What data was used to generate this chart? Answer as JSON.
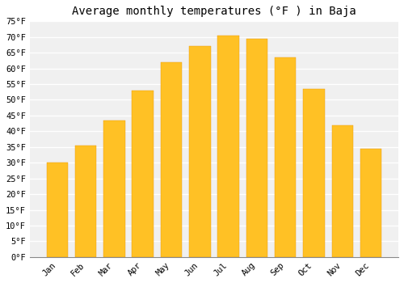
{
  "title": "Average monthly temperatures (°F ) in Baja",
  "months": [
    "Jan",
    "Feb",
    "Mar",
    "Apr",
    "May",
    "Jun",
    "Jul",
    "Aug",
    "Sep",
    "Oct",
    "Nov",
    "Dec"
  ],
  "values": [
    30,
    35.5,
    43.5,
    53,
    62,
    67,
    70.5,
    69.5,
    63.5,
    53.5,
    42,
    34.5
  ],
  "bar_color_top": "#FFC125",
  "bar_color_bottom": "#F5A623",
  "bar_edge_color": "#E8960A",
  "ylim": [
    0,
    75
  ],
  "yticks": [
    0,
    5,
    10,
    15,
    20,
    25,
    30,
    35,
    40,
    45,
    50,
    55,
    60,
    65,
    70,
    75
  ],
  "background_color": "#ffffff",
  "plot_background_color": "#f0f0f0",
  "grid_color": "#ffffff",
  "title_fontsize": 10,
  "tick_fontsize": 7.5,
  "font_family": "monospace",
  "bar_width": 0.75
}
